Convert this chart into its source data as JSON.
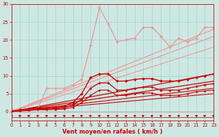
{
  "bg_color": "#cde8e3",
  "grid_color": "#aad4cc",
  "xlabel": "Vent moyen/en rafales ( km/h )",
  "xlabel_color": "#cc0000",
  "tick_color": "#cc0000",
  "xlim": [
    0,
    23
  ],
  "ylim": [
    0,
    30
  ],
  "ylim_actual": [
    -2.5,
    30
  ],
  "xticks": [
    0,
    1,
    2,
    3,
    4,
    5,
    6,
    7,
    8,
    9,
    10,
    11,
    12,
    13,
    14,
    15,
    16,
    17,
    18,
    19,
    20,
    21,
    22,
    23
  ],
  "yticks": [
    0,
    5,
    10,
    15,
    20,
    25,
    30
  ],
  "series": [
    {
      "label": "straight_dark1",
      "x": [
        0,
        23
      ],
      "y": [
        0,
        10.5
      ],
      "color": "#cc0000",
      "lw": 0.9,
      "marker": null,
      "linestyle": "-"
    },
    {
      "label": "straight_dark2",
      "x": [
        0,
        23
      ],
      "y": [
        0,
        8.5
      ],
      "color": "#cc0000",
      "lw": 0.9,
      "marker": null,
      "linestyle": "-"
    },
    {
      "label": "straight_dark3",
      "x": [
        0,
        23
      ],
      "y": [
        0,
        6.5
      ],
      "color": "#cc0000",
      "lw": 0.8,
      "marker": null,
      "linestyle": "-"
    },
    {
      "label": "straight_dark4",
      "x": [
        0,
        23
      ],
      "y": [
        0,
        5.0
      ],
      "color": "#cc0000",
      "lw": 0.8,
      "marker": null,
      "linestyle": "-"
    },
    {
      "label": "straight_light1",
      "x": [
        0,
        23
      ],
      "y": [
        0,
        23.0
      ],
      "color": "#ee9999",
      "lw": 0.9,
      "marker": null,
      "linestyle": "-"
    },
    {
      "label": "straight_light2",
      "x": [
        0,
        23
      ],
      "y": [
        0,
        21.0
      ],
      "color": "#ee9999",
      "lw": 0.9,
      "marker": null,
      "linestyle": "-"
    },
    {
      "label": "straight_light3",
      "x": [
        0,
        23
      ],
      "y": [
        0,
        18.0
      ],
      "color": "#ee9999",
      "lw": 0.8,
      "marker": null,
      "linestyle": "-"
    },
    {
      "label": "wavy_light_markers",
      "x": [
        0,
        1,
        2,
        3,
        4,
        5,
        6,
        7,
        8,
        9,
        10,
        11,
        12,
        13,
        14,
        15,
        16,
        17,
        18,
        19,
        20,
        21,
        22,
        23
      ],
      "y": [
        0.5,
        0.5,
        0.5,
        0.8,
        6.5,
        6.5,
        6.5,
        7.5,
        9.0,
        18.5,
        29.0,
        24.5,
        19.5,
        20.0,
        20.5,
        23.5,
        23.5,
        21.0,
        18.0,
        20.5,
        19.5,
        20.5,
        23.5,
        23.5
      ],
      "color": "#ee9999",
      "lw": 1.0,
      "marker": "D",
      "markersize": 2.0,
      "linestyle": "-"
    },
    {
      "label": "wavy_dark_markers1",
      "x": [
        0,
        1,
        2,
        3,
        4,
        5,
        6,
        7,
        8,
        9,
        10,
        11,
        12,
        13,
        14,
        15,
        16,
        17,
        18,
        19,
        20,
        21,
        22,
        23
      ],
      "y": [
        0.1,
        0.5,
        0.8,
        1.0,
        1.0,
        1.2,
        1.5,
        2.5,
        5.0,
        9.5,
        10.5,
        10.5,
        8.5,
        8.5,
        9.0,
        9.2,
        9.2,
        8.5,
        8.5,
        8.5,
        9.0,
        9.5,
        10.0,
        10.5
      ],
      "color": "#cc0000",
      "lw": 1.0,
      "marker": "D",
      "markersize": 2.0,
      "linestyle": "-"
    },
    {
      "label": "wavy_dark_markers2",
      "x": [
        0,
        1,
        2,
        3,
        4,
        5,
        6,
        7,
        8,
        9,
        10,
        11,
        12,
        13,
        14,
        15,
        16,
        17,
        18,
        19,
        20,
        21,
        22,
        23
      ],
      "y": [
        0.1,
        0.3,
        0.5,
        0.7,
        0.7,
        0.8,
        1.0,
        1.8,
        3.5,
        6.5,
        8.0,
        8.0,
        6.0,
        6.0,
        6.5,
        6.8,
        6.8,
        6.0,
        6.0,
        6.0,
        6.5,
        7.0,
        7.5,
        7.8
      ],
      "color": "#cc0000",
      "lw": 0.9,
      "marker": "D",
      "markersize": 1.8,
      "linestyle": "-"
    },
    {
      "label": "wavy_dark_markers3",
      "x": [
        0,
        1,
        2,
        3,
        4,
        5,
        6,
        7,
        8,
        9,
        10,
        11,
        12,
        13,
        14,
        15,
        16,
        17,
        18,
        19,
        20,
        21,
        22,
        23
      ],
      "y": [
        0.1,
        0.2,
        0.3,
        0.5,
        0.5,
        0.6,
        0.7,
        1.2,
        2.5,
        4.5,
        6.0,
        6.0,
        4.5,
        4.5,
        5.0,
        5.2,
        5.2,
        4.5,
        4.5,
        4.5,
        5.0,
        5.5,
        5.8,
        6.0
      ],
      "color": "#cc0000",
      "lw": 0.8,
      "marker": "D",
      "markersize": 1.5,
      "linestyle": "-"
    },
    {
      "label": "arrows_bottom",
      "x": [
        0,
        1,
        2,
        3,
        4,
        5,
        6,
        7,
        8,
        9,
        10,
        11,
        12,
        13,
        14,
        15,
        16,
        17,
        18,
        19,
        20,
        21,
        22,
        23
      ],
      "y": [
        -1.5,
        -1.5,
        -1.5,
        -1.5,
        -1.5,
        -1.5,
        -1.5,
        -1.5,
        -1.5,
        -1.5,
        -1.5,
        -1.5,
        -1.5,
        -1.5,
        -1.5,
        -1.5,
        -1.5,
        -1.5,
        -1.5,
        -1.5,
        -1.5,
        -1.5,
        -1.5,
        -1.5
      ],
      "color": "#cc0000",
      "lw": 0.5,
      "marker": 7,
      "markersize": 3.0,
      "linestyle": "-"
    }
  ]
}
